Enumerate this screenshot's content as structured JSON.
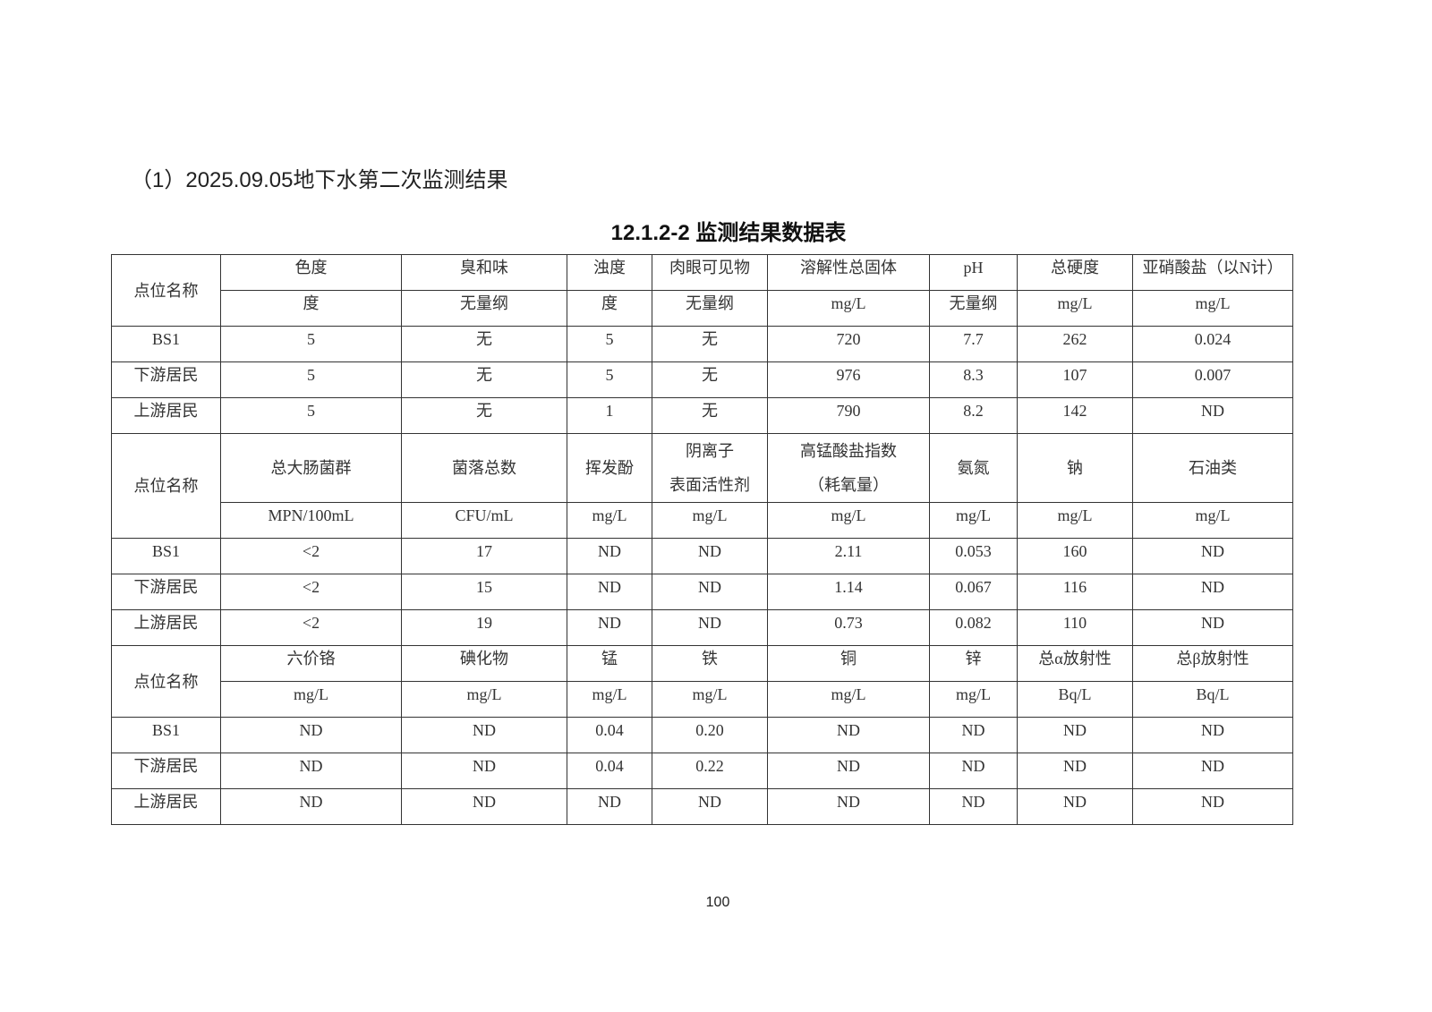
{
  "heading": "（1）2025.09.05地下水第二次监测结果",
  "caption": "12.1.2-2  监测结果数据表",
  "page_number": "100",
  "sections": [
    {
      "site_label": "点位名称",
      "params": [
        "色度",
        "臭和味",
        "浊度",
        "肉眼可见物",
        "溶解性总固体",
        "pH",
        "总硬度",
        "亚硝酸盐（以N计）"
      ],
      "units": [
        "度",
        "无量纲",
        "度",
        "无量纲",
        "mg/L",
        "无量纲",
        "mg/L",
        "mg/L"
      ],
      "rows": [
        {
          "site": "BS1",
          "values": [
            "5",
            "无",
            "5",
            "无",
            "720",
            "7.7",
            "262",
            "0.024"
          ]
        },
        {
          "site": "下游居民",
          "values": [
            "5",
            "无",
            "5",
            "无",
            "976",
            "8.3",
            "107",
            "0.007"
          ]
        },
        {
          "site": "上游居民",
          "values": [
            "5",
            "无",
            "1",
            "无",
            "790",
            "8.2",
            "142",
            "ND"
          ]
        }
      ]
    },
    {
      "site_label": "点位名称",
      "params": [
        "总大肠菌群",
        "菌落总数",
        "挥发酚",
        "阴离子\n表面活性剂",
        "高锰酸盐指数\n（耗氧量）",
        "氨氮",
        "钠",
        "石油类"
      ],
      "units": [
        "MPN/100mL",
        "CFU/mL",
        "mg/L",
        "mg/L",
        "mg/L",
        "mg/L",
        "mg/L",
        "mg/L"
      ],
      "rows": [
        {
          "site": "BS1",
          "values": [
            "<2",
            "17",
            "ND",
            "ND",
            "2.11",
            "0.053",
            "160",
            "ND"
          ]
        },
        {
          "site": "下游居民",
          "values": [
            "<2",
            "15",
            "ND",
            "ND",
            "1.14",
            "0.067",
            "116",
            "ND"
          ]
        },
        {
          "site": "上游居民",
          "values": [
            "<2",
            "19",
            "ND",
            "ND",
            "0.73",
            "0.082",
            "110",
            "ND"
          ]
        }
      ]
    },
    {
      "site_label": "点位名称",
      "params": [
        "六价铬",
        "碘化物",
        "锰",
        "铁",
        "铜",
        "锌",
        "总α放射性",
        "总β放射性"
      ],
      "units": [
        "mg/L",
        "mg/L",
        "mg/L",
        "mg/L",
        "mg/L",
        "mg/L",
        "Bq/L",
        "Bq/L"
      ],
      "rows": [
        {
          "site": "BS1",
          "values": [
            "ND",
            "ND",
            "0.04",
            "0.20",
            "ND",
            "ND",
            "ND",
            "ND"
          ]
        },
        {
          "site": "下游居民",
          "values": [
            "ND",
            "ND",
            "0.04",
            "0.22",
            "ND",
            "ND",
            "ND",
            "ND"
          ]
        },
        {
          "site": "上游居民",
          "values": [
            "ND",
            "ND",
            "ND",
            "ND",
            "ND",
            "ND",
            "ND",
            "ND"
          ]
        }
      ]
    }
  ]
}
